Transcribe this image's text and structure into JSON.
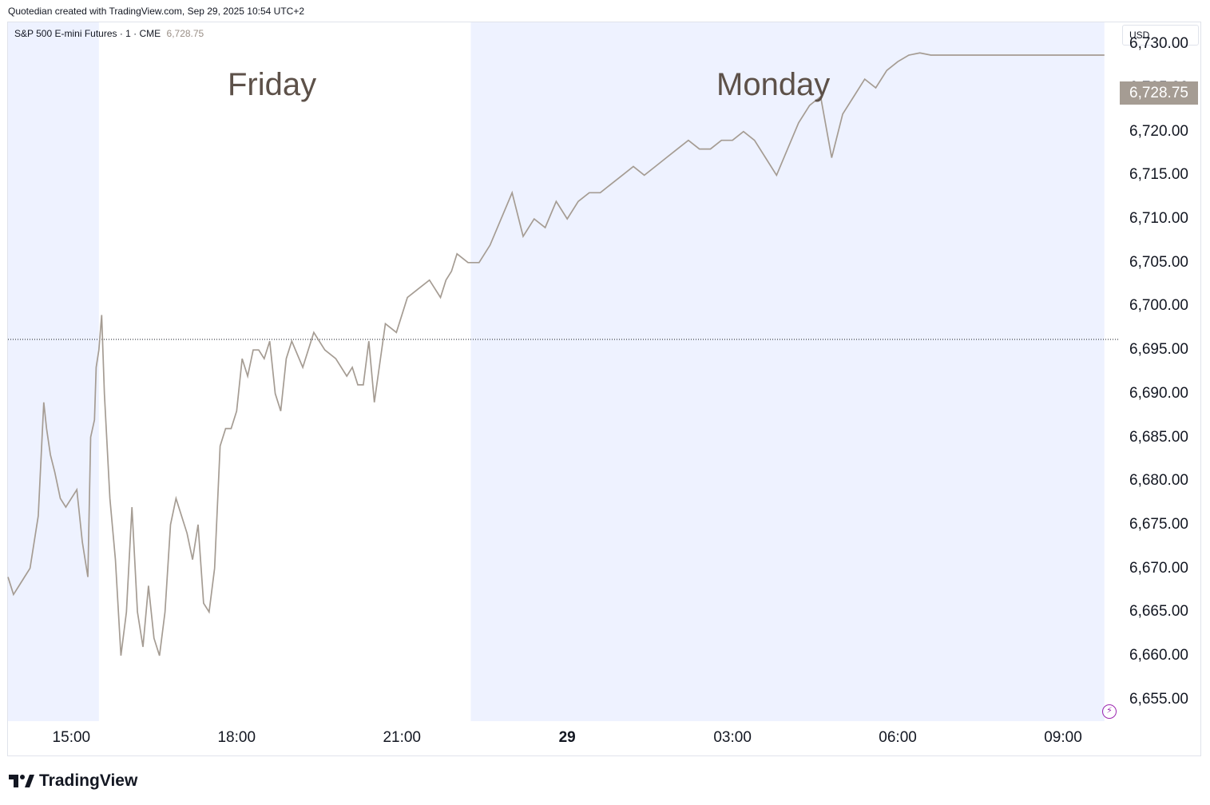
{
  "header": {
    "credit": "Quotedian created with TradingView.com, Sep 29, 2025 10:54 UTC+2"
  },
  "legend": {
    "symbol": "S&P 500 E-mini Futures · 1 · CME",
    "last_price": "6,728.75"
  },
  "scale": {
    "currency": "USD"
  },
  "annotations": {
    "left_session": "Friday",
    "right_session": "Monday"
  },
  "footer": {
    "brand": "TradingView"
  },
  "colors": {
    "line": "#a59c93",
    "session_shade": "#eef2ff",
    "badge": "#a59c93",
    "bolt": "#9c27b0"
  },
  "icons": {
    "brand_logo": "tradingview-logo-icon",
    "alert": "lightning-bolt-icon"
  },
  "chart_data": {
    "type": "line",
    "title": "S&P 500 E-mini Futures · 1 · CME",
    "ylim": [
      6652.5,
      6732.5
    ],
    "yticks": [
      6655,
      6660,
      6665,
      6670,
      6675,
      6680,
      6685,
      6690,
      6695,
      6700,
      6705,
      6710,
      6715,
      6720,
      6725,
      6730
    ],
    "ytick_labels": [
      "6,655.00",
      "6,660.00",
      "6,665.00",
      "6,670.00",
      "6,675.00",
      "6,680.00",
      "6,685.00",
      "6,690.00",
      "6,695.00",
      "6,700.00",
      "6,705.00",
      "6,710.00",
      "6,715.00",
      "6,720.00",
      "6,725.00",
      "6,730.00"
    ],
    "xlim": [
      13.85,
      34.0
    ],
    "xticks": [
      {
        "t": 15.0,
        "label": "15:00"
      },
      {
        "t": 18.0,
        "label": "18:00"
      },
      {
        "t": 21.0,
        "label": "21:00"
      },
      {
        "t": 24.0,
        "label": "29",
        "bold": true
      },
      {
        "t": 27.0,
        "label": "03:00"
      },
      {
        "t": 30.0,
        "label": "06:00"
      },
      {
        "t": 33.0,
        "label": "09:00"
      }
    ],
    "shaded_sessions": [
      [
        13.85,
        15.5
      ],
      [
        22.25,
        33.75
      ]
    ],
    "reference_line": 6696.2,
    "last_value": 6728.75,
    "x_unit": "hours from Friday 00:00 (UTC+2)",
    "series": [
      {
        "x": [
          13.85,
          13.95,
          14.05,
          14.15,
          14.25,
          14.4,
          14.5,
          14.55,
          14.62,
          14.7,
          14.8,
          14.9,
          15.0,
          15.1,
          15.2,
          15.3,
          15.35,
          15.42,
          15.45,
          15.5,
          15.55,
          15.6,
          15.7,
          15.8,
          15.9,
          16.0,
          16.1,
          16.2,
          16.3,
          16.4,
          16.5,
          16.6,
          16.7,
          16.8,
          16.9,
          17.0,
          17.1,
          17.2,
          17.3,
          17.4,
          17.5,
          17.6,
          17.7,
          17.8,
          17.9,
          18.0,
          18.1,
          18.2,
          18.3,
          18.4,
          18.5,
          18.6,
          18.7,
          18.8,
          18.9,
          19.0,
          19.2,
          19.4,
          19.6,
          19.8,
          20.0,
          20.1,
          20.2,
          20.3,
          20.4,
          20.5,
          20.7,
          20.9,
          21.1,
          21.3,
          21.5,
          21.7,
          21.8,
          21.9,
          22.0,
          22.2,
          22.4,
          22.6,
          22.8,
          23.0,
          23.2,
          23.4,
          23.6,
          23.8,
          24.0,
          24.2,
          24.4,
          24.6,
          24.8,
          25.0,
          25.2,
          25.4,
          25.6,
          25.8,
          26.0,
          26.2,
          26.4,
          26.6,
          26.8,
          27.0,
          27.2,
          27.4,
          27.6,
          27.8,
          28.0,
          28.2,
          28.4,
          28.6,
          28.8,
          29.0,
          29.2,
          29.4,
          29.6,
          29.8,
          30.0,
          30.2,
          30.4,
          30.6,
          30.8,
          31.0,
          31.2,
          31.4,
          31.6,
          31.8,
          32.0,
          32.2,
          32.4,
          32.6,
          32.8,
          33.0,
          33.2,
          33.4,
          33.6,
          33.7,
          33.75
        ],
        "y": [
          6669,
          6667,
          6668,
          6669,
          6670,
          6676,
          6689,
          6686,
          6683,
          6681,
          6678,
          6677,
          6678,
          6679,
          6673,
          6669,
          6685,
          6687,
          6693,
          6695,
          6699,
          6690,
          6678,
          6671,
          6660,
          6665,
          6677,
          6665,
          6661,
          6668,
          6662,
          6660,
          6665,
          6675,
          6678,
          6676,
          6674,
          6671,
          6675,
          6666,
          6665,
          6670,
          6684,
          6686,
          6686,
          6688,
          6694,
          6692,
          6695,
          6695,
          6694,
          6696,
          6690,
          6688,
          6694,
          6696,
          6693,
          6697,
          6695,
          6694,
          6692,
          6693,
          6691,
          6691,
          6696,
          6689,
          6698,
          6697,
          6701,
          6702,
          6703,
          6701,
          6703,
          6704,
          6706,
          6705,
          6705,
          6707,
          6710,
          6713,
          6708,
          6710,
          6709,
          6712,
          6710,
          6712,
          6713,
          6713,
          6714,
          6715,
          6716,
          6715,
          6716,
          6717,
          6718,
          6719,
          6718,
          6718,
          6719,
          6719,
          6720,
          6719,
          6717,
          6715,
          6718,
          6721,
          6723,
          6724,
          6717,
          6722,
          6724,
          6726,
          6725,
          6727,
          6728,
          6728.75,
          6729,
          6728.75,
          6728.75,
          6728.75,
          6728.75,
          6728.75,
          6728.75,
          6728.75,
          6728.75,
          6728.75,
          6728.75,
          6728.75,
          6728.75,
          6728.75,
          6728.75,
          6728.75,
          6728.75,
          6728.75,
          6728.75
        ]
      }
    ]
  }
}
